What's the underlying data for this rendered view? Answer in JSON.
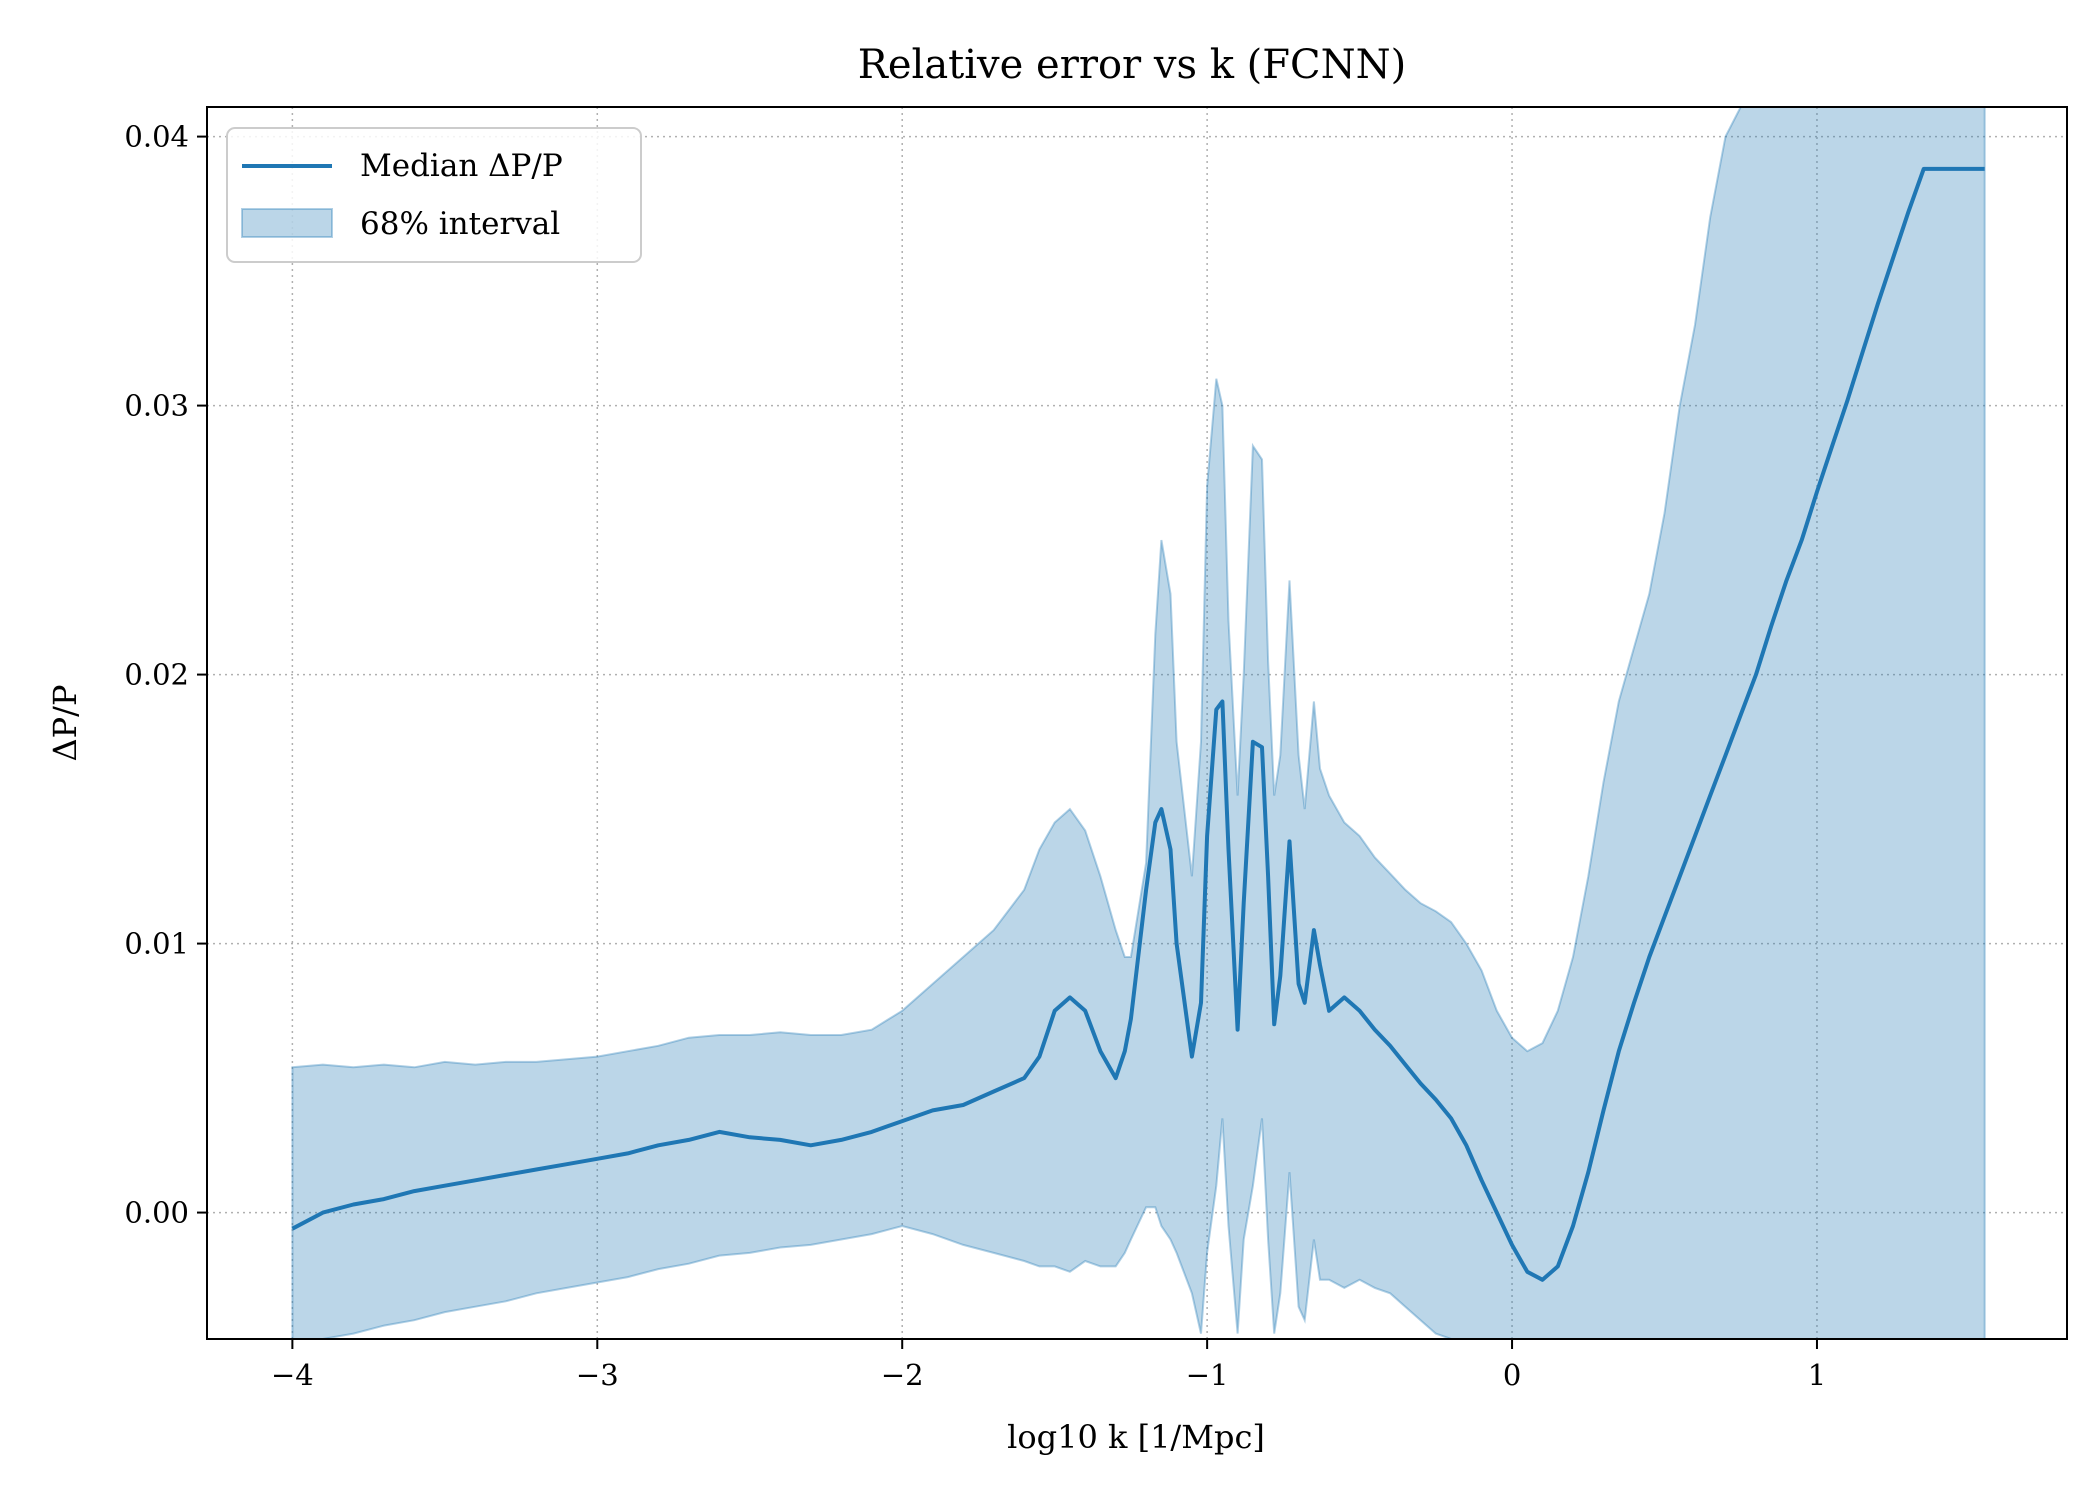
{
  "chart_data": {
    "type": "line",
    "title": "Relative error vs k (FCNN)",
    "xlabel": "log10 k [1/Mpc]",
    "ylabel": "ΔP/P",
    "xlim": [
      -4.28,
      1.82
    ],
    "ylim": [
      -0.0047,
      0.0411
    ],
    "x_ticks": [
      -4,
      -3,
      -2,
      -1,
      0,
      1
    ],
    "x_tick_labels": [
      "−4",
      "−3",
      "−2",
      "−1",
      "0",
      "1"
    ],
    "y_ticks": [
      0.0,
      0.01,
      0.02,
      0.03,
      0.04
    ],
    "y_tick_labels": [
      "0.00",
      "0.01",
      "0.02",
      "0.03",
      "0.04"
    ],
    "grid": true,
    "legend_position": "top-left",
    "colors": {
      "median": "#1f77b4",
      "band_fill": "#1f77b4",
      "band_fill_opacity": 0.3
    },
    "series": [
      {
        "name": "Median ΔP/P",
        "style": "line",
        "x": [
          -4.0,
          -3.9,
          -3.8,
          -3.7,
          -3.6,
          -3.5,
          -3.4,
          -3.3,
          -3.2,
          -3.1,
          -3.0,
          -2.9,
          -2.8,
          -2.7,
          -2.6,
          -2.5,
          -2.4,
          -2.3,
          -2.2,
          -2.1,
          -2.0,
          -1.9,
          -1.8,
          -1.7,
          -1.6,
          -1.55,
          -1.5,
          -1.45,
          -1.4,
          -1.35,
          -1.3,
          -1.27,
          -1.25,
          -1.2,
          -1.17,
          -1.15,
          -1.12,
          -1.1,
          -1.05,
          -1.02,
          -1.0,
          -0.97,
          -0.95,
          -0.93,
          -0.9,
          -0.88,
          -0.85,
          -0.82,
          -0.8,
          -0.78,
          -0.76,
          -0.73,
          -0.7,
          -0.68,
          -0.65,
          -0.63,
          -0.6,
          -0.55,
          -0.5,
          -0.45,
          -0.4,
          -0.35,
          -0.3,
          -0.25,
          -0.2,
          -0.15,
          -0.1,
          -0.05,
          0.0,
          0.05,
          0.1,
          0.15,
          0.2,
          0.25,
          0.3,
          0.35,
          0.4,
          0.45,
          0.5,
          0.55,
          0.6,
          0.65,
          0.7,
          0.75,
          0.8,
          0.85,
          0.9,
          0.95,
          1.0,
          1.05,
          1.1,
          1.15,
          1.2,
          1.25,
          1.3,
          1.35,
          1.4,
          1.45,
          1.5,
          1.55
        ],
        "y": [
          -0.0006,
          0.0,
          0.0003,
          0.0005,
          0.0008,
          0.001,
          0.0012,
          0.0014,
          0.0016,
          0.0018,
          0.002,
          0.0022,
          0.0025,
          0.0027,
          0.003,
          0.0028,
          0.0027,
          0.0025,
          0.0027,
          0.003,
          0.0034,
          0.0038,
          0.004,
          0.0045,
          0.005,
          0.0058,
          0.0075,
          0.008,
          0.0075,
          0.006,
          0.005,
          0.006,
          0.0072,
          0.012,
          0.0145,
          0.015,
          0.0135,
          0.01,
          0.0058,
          0.0078,
          0.014,
          0.0187,
          0.019,
          0.0135,
          0.0068,
          0.0115,
          0.0175,
          0.0173,
          0.0125,
          0.007,
          0.0088,
          0.0138,
          0.0085,
          0.0078,
          0.0105,
          0.0092,
          0.0075,
          0.008,
          0.0075,
          0.0068,
          0.0062,
          0.0055,
          0.0048,
          0.0042,
          0.0035,
          0.0025,
          0.0012,
          0.0,
          -0.0012,
          -0.0022,
          -0.0025,
          -0.002,
          -0.0005,
          0.0015,
          0.0038,
          0.006,
          0.0078,
          0.0095,
          0.011,
          0.0125,
          0.014,
          0.0155,
          0.017,
          0.0185,
          0.02,
          0.0218,
          0.0235,
          0.025,
          0.0268,
          0.0285,
          0.0302,
          0.032,
          0.0338,
          0.0355,
          0.0372,
          0.0388,
          0.0388,
          0.0388,
          0.0388,
          0.0388
        ]
      },
      {
        "name": "68% interval",
        "style": "band",
        "x": [
          -4.0,
          -3.9,
          -3.8,
          -3.7,
          -3.6,
          -3.5,
          -3.4,
          -3.3,
          -3.2,
          -3.1,
          -3.0,
          -2.9,
          -2.8,
          -2.7,
          -2.6,
          -2.5,
          -2.4,
          -2.3,
          -2.2,
          -2.1,
          -2.0,
          -1.9,
          -1.8,
          -1.7,
          -1.6,
          -1.55,
          -1.5,
          -1.45,
          -1.4,
          -1.35,
          -1.3,
          -1.27,
          -1.25,
          -1.2,
          -1.17,
          -1.15,
          -1.12,
          -1.1,
          -1.05,
          -1.02,
          -1.0,
          -0.97,
          -0.95,
          -0.93,
          -0.9,
          -0.88,
          -0.85,
          -0.82,
          -0.8,
          -0.78,
          -0.76,
          -0.73,
          -0.7,
          -0.68,
          -0.65,
          -0.63,
          -0.6,
          -0.55,
          -0.5,
          -0.45,
          -0.4,
          -0.35,
          -0.3,
          -0.25,
          -0.2,
          -0.15,
          -0.1,
          -0.05,
          0.0,
          0.05,
          0.1,
          0.15,
          0.2,
          0.25,
          0.3,
          0.35,
          0.4,
          0.45,
          0.5,
          0.55,
          0.6,
          0.65,
          0.7,
          0.75,
          0.8,
          0.85,
          0.9,
          0.95,
          1.0,
          1.05,
          1.1,
          1.15,
          1.2,
          1.25,
          1.3,
          1.35,
          1.4,
          1.45,
          1.5,
          1.55
        ],
        "upper": [
          0.0054,
          0.0055,
          0.0054,
          0.0055,
          0.0054,
          0.0056,
          0.0055,
          0.0056,
          0.0056,
          0.0057,
          0.0058,
          0.006,
          0.0062,
          0.0065,
          0.0066,
          0.0066,
          0.0067,
          0.0066,
          0.0066,
          0.0068,
          0.0075,
          0.0085,
          0.0095,
          0.0105,
          0.012,
          0.0135,
          0.0145,
          0.015,
          0.0142,
          0.0125,
          0.0105,
          0.0095,
          0.0095,
          0.013,
          0.0215,
          0.025,
          0.023,
          0.0175,
          0.0125,
          0.0175,
          0.027,
          0.031,
          0.03,
          0.022,
          0.0155,
          0.02,
          0.0285,
          0.028,
          0.0205,
          0.0155,
          0.017,
          0.0235,
          0.017,
          0.015,
          0.019,
          0.0165,
          0.0155,
          0.0145,
          0.014,
          0.0132,
          0.0126,
          0.012,
          0.0115,
          0.0112,
          0.0108,
          0.01,
          0.009,
          0.0075,
          0.0065,
          0.006,
          0.0063,
          0.0075,
          0.0095,
          0.0125,
          0.016,
          0.019,
          0.021,
          0.023,
          0.026,
          0.03,
          0.033,
          0.037,
          0.04,
          0.0411,
          0.0411,
          0.0411,
          0.0411,
          0.0411,
          0.0411,
          0.0411,
          0.0411,
          0.0411,
          0.0411,
          0.0411,
          0.0411,
          0.0411,
          0.0411,
          0.0411,
          0.0411,
          0.0411
        ],
        "lower": [
          -0.0047,
          -0.0047,
          -0.0045,
          -0.0042,
          -0.004,
          -0.0037,
          -0.0035,
          -0.0033,
          -0.003,
          -0.0028,
          -0.0026,
          -0.0024,
          -0.0021,
          -0.0019,
          -0.0016,
          -0.0015,
          -0.0013,
          -0.0012,
          -0.001,
          -0.0008,
          -0.0005,
          -0.0008,
          -0.0012,
          -0.0015,
          -0.0018,
          -0.002,
          -0.002,
          -0.0022,
          -0.0018,
          -0.002,
          -0.002,
          -0.0015,
          -0.001,
          0.0002,
          0.0002,
          -0.0005,
          -0.001,
          -0.0015,
          -0.003,
          -0.0045,
          -0.0015,
          0.001,
          0.0035,
          -0.0005,
          -0.0045,
          -0.001,
          0.001,
          0.0035,
          -0.001,
          -0.0045,
          -0.003,
          0.0015,
          -0.0035,
          -0.004,
          -0.001,
          -0.0025,
          -0.0025,
          -0.0028,
          -0.0025,
          -0.0028,
          -0.003,
          -0.0035,
          -0.004,
          -0.0045,
          -0.0047,
          -0.0047,
          -0.0047,
          -0.0047,
          -0.0047,
          -0.0047,
          -0.0047,
          -0.0047,
          -0.0047,
          -0.0047,
          -0.0047,
          -0.0047,
          -0.0047,
          -0.0047,
          -0.0047,
          -0.0047,
          -0.0047,
          -0.0047,
          -0.0047,
          -0.0047,
          -0.0047,
          -0.0047,
          -0.0047,
          -0.0047,
          -0.0047,
          -0.0047,
          -0.0047,
          -0.0047,
          -0.0047,
          -0.0047,
          -0.0047,
          -0.0047,
          -0.0047,
          -0.0047,
          -0.0047,
          -0.0047
        ]
      }
    ]
  }
}
